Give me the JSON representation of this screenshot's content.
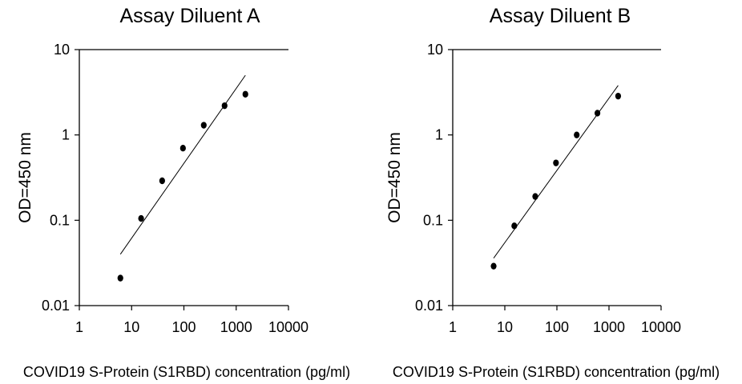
{
  "chart_data": [
    {
      "type": "scatter",
      "title": "Assay Diluent A",
      "xlabel": "COVID19 S-Protein (S1RBD) concentration (pg/ml)",
      "ylabel": "OD=450 nm",
      "x_scale": "log",
      "y_scale": "log",
      "xlim": [
        1,
        10000
      ],
      "ylim": [
        0.01,
        10
      ],
      "x_ticks": [
        "1",
        "10",
        "100",
        "1000",
        "10000"
      ],
      "y_ticks": [
        "0.01",
        "0.1",
        "1",
        "10"
      ],
      "grid": false,
      "points": {
        "x": [
          6.1,
          15.2,
          38.4,
          96,
          240,
          600,
          1500
        ],
        "y": [
          0.021,
          0.105,
          0.29,
          0.7,
          1.3,
          2.2,
          3.0
        ]
      },
      "fit_line": {
        "x": [
          6.1,
          1500
        ],
        "y": [
          0.04,
          5.0
        ]
      }
    },
    {
      "type": "scatter",
      "title": "Assay Diluent B",
      "xlabel": "COVID19 S-Protein (S1RBD) concentration (pg/ml)",
      "ylabel": "OD=450 nm",
      "x_scale": "log",
      "y_scale": "log",
      "xlim": [
        1,
        10000
      ],
      "ylim": [
        0.01,
        10
      ],
      "x_ticks": [
        "1",
        "10",
        "100",
        "1000",
        "10000"
      ],
      "y_ticks": [
        "0.01",
        "0.1",
        "1",
        "10"
      ],
      "grid": false,
      "points": {
        "x": [
          6.1,
          15.2,
          38.4,
          96,
          240,
          600,
          1500
        ],
        "y": [
          0.029,
          0.086,
          0.19,
          0.47,
          1.0,
          1.8,
          2.85
        ]
      },
      "fit_line": {
        "x": [
          6.1,
          1500
        ],
        "y": [
          0.036,
          3.8
        ]
      }
    }
  ]
}
